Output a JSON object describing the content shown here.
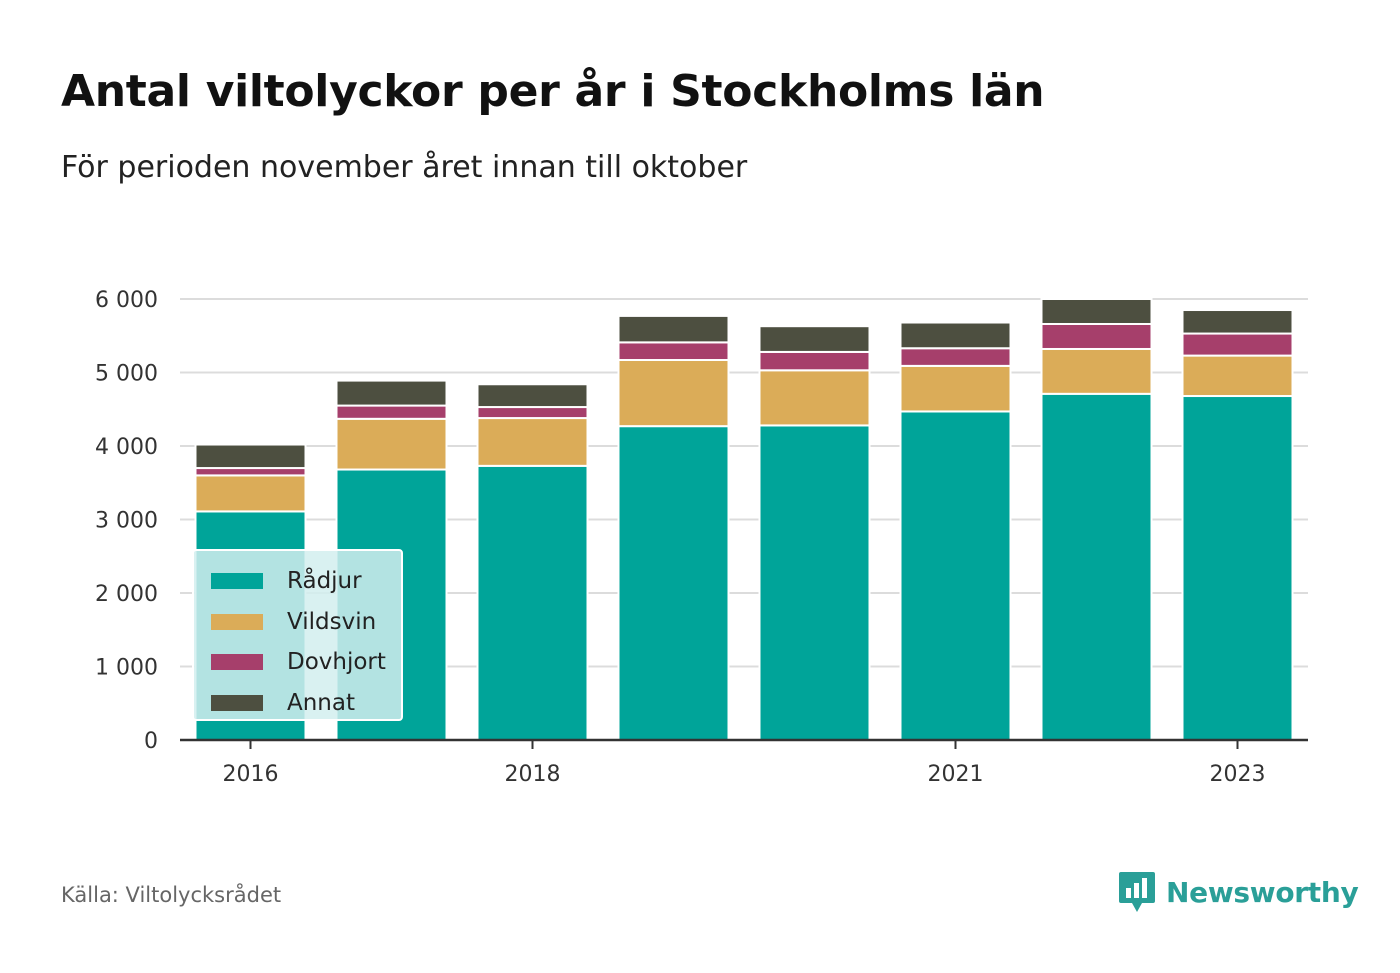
{
  "title": "Antal viltolyckor per år i Stockholms län",
  "subtitle": "För perioden november året innan till oktober",
  "source": "Källa: Viltolycksrådet",
  "brand": {
    "name": "Newsworthy",
    "icon": "newsworthy-logo-icon",
    "color": "#2a9f98"
  },
  "chart_data": {
    "type": "bar",
    "stacked": true,
    "categories": [
      "2016",
      "2017",
      "2018",
      "2019",
      "2020",
      "2021",
      "2022",
      "2023"
    ],
    "x_tick_labels": [
      "2016",
      "2018",
      "2021",
      "2023"
    ],
    "ylim": [
      0,
      6000
    ],
    "y_ticks": [
      0,
      1000,
      2000,
      3000,
      4000,
      5000,
      6000
    ],
    "y_tick_labels": [
      "0",
      "1 000",
      "2 000",
      "3 000",
      "4 000",
      "5 000",
      "6 000"
    ],
    "grid": true,
    "legend_position": "bottom-left",
    "series": [
      {
        "name": "Rådjur",
        "color": "#00a499",
        "values": [
          3110,
          3680,
          3730,
          4270,
          4280,
          4470,
          4710,
          4680
        ]
      },
      {
        "name": "Vildsvin",
        "color": "#dbac58",
        "values": [
          490,
          690,
          650,
          900,
          750,
          620,
          610,
          550
        ]
      },
      {
        "name": "Dovhjort",
        "color": "#a63f6b",
        "values": [
          100,
          180,
          150,
          240,
          250,
          240,
          340,
          300
        ]
      },
      {
        "name": "Annat",
        "color": "#4d4f40",
        "values": [
          320,
          340,
          310,
          360,
          350,
          350,
          340,
          320
        ]
      }
    ]
  }
}
